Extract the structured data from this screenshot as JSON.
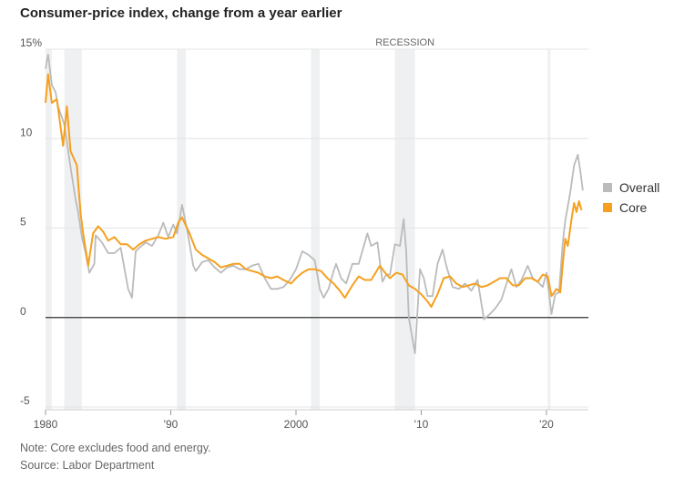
{
  "chart_data": {
    "type": "line",
    "title": "Consumer-price index, change from a year earlier",
    "ylim": [
      -5,
      15
    ],
    "xlim": [
      1980,
      2023
    ],
    "yticks": [
      15,
      10,
      5,
      0,
      -5
    ],
    "ytick_labels": [
      "15%",
      "10",
      "5",
      "0",
      "-5"
    ],
    "xticks": [
      1980,
      1990,
      2000,
      2010,
      2020
    ],
    "xtick_labels": [
      "1980",
      "'90",
      "2000",
      "'10",
      "'20"
    ],
    "grid": true,
    "legend_placement": "right",
    "recession_label": "RECESSION",
    "recessions": [
      [
        1980.0,
        1980.5
      ],
      [
        1981.5,
        1982.9
      ],
      [
        1990.5,
        1991.2
      ],
      [
        2001.2,
        2001.9
      ],
      [
        2007.9,
        2009.5
      ],
      [
        2020.1,
        2020.3
      ]
    ],
    "colors": {
      "Overall": "#bbbbbb",
      "Core": "#f5a01f",
      "recession": "#eef0f2",
      "zero_line": "#333333",
      "grid": "#e4e4e4"
    },
    "series": [
      {
        "name": "Overall",
        "x": [
          1980.0,
          1980.2,
          1980.5,
          1980.8,
          1981.0,
          1981.5,
          1982.0,
          1982.4,
          1982.6,
          1982.9,
          1983.2,
          1983.5,
          1983.9,
          1984.0,
          1984.5,
          1985.0,
          1985.5,
          1986.0,
          1986.6,
          1986.9,
          1987.2,
          1987.5,
          1988.0,
          1988.5,
          1989.0,
          1989.4,
          1989.8,
          1990.2,
          1990.5,
          1990.9,
          1991.3,
          1991.8,
          1992.0,
          1992.5,
          1993.0,
          1993.5,
          1994.0,
          1994.5,
          1995.0,
          1995.5,
          1996.0,
          1996.5,
          1997.0,
          1997.5,
          1998.0,
          1998.5,
          1999.0,
          1999.5,
          2000.0,
          2000.5,
          2001.0,
          2001.5,
          2001.9,
          2002.2,
          2002.6,
          2003.0,
          2003.2,
          2003.6,
          2004.0,
          2004.5,
          2005.0,
          2005.7,
          2006.0,
          2006.5,
          2006.9,
          2007.2,
          2007.5,
          2007.9,
          2008.3,
          2008.6,
          2008.8,
          2009.0,
          2009.5,
          2009.9,
          2010.2,
          2010.5,
          2010.9,
          2011.3,
          2011.7,
          2012.0,
          2012.5,
          2013.0,
          2013.5,
          2014.0,
          2014.5,
          2015.0,
          2015.5,
          2015.9,
          2016.4,
          2016.9,
          2017.2,
          2017.6,
          2018.0,
          2018.5,
          2018.9,
          2019.3,
          2019.7,
          2020.0,
          2020.4,
          2020.7,
          2021.0,
          2021.3,
          2021.5,
          2021.9,
          2022.2,
          2022.5,
          2022.7,
          2022.9
        ],
        "values": [
          13.9,
          14.7,
          13.0,
          12.6,
          11.8,
          10.8,
          8.4,
          6.6,
          5.9,
          4.5,
          3.6,
          2.5,
          3.0,
          4.6,
          4.2,
          3.6,
          3.6,
          3.9,
          1.6,
          1.1,
          3.7,
          3.9,
          4.2,
          4.0,
          4.6,
          5.3,
          4.5,
          5.2,
          4.7,
          6.3,
          4.9,
          2.9,
          2.6,
          3.1,
          3.2,
          2.8,
          2.5,
          2.8,
          2.9,
          2.7,
          2.7,
          2.9,
          3.0,
          2.2,
          1.6,
          1.6,
          1.7,
          2.1,
          2.7,
          3.7,
          3.5,
          3.2,
          1.6,
          1.1,
          1.6,
          2.6,
          3.0,
          2.2,
          1.9,
          3.0,
          3.0,
          4.7,
          4.0,
          4.2,
          2.0,
          2.4,
          2.4,
          4.1,
          4.0,
          5.5,
          3.7,
          0.0,
          -2.0,
          2.7,
          2.2,
          1.2,
          1.2,
          3.0,
          3.8,
          2.9,
          1.7,
          1.6,
          1.9,
          1.5,
          2.1,
          -0.1,
          0.2,
          0.5,
          1.0,
          2.1,
          2.7,
          1.7,
          2.1,
          2.9,
          2.2,
          2.0,
          1.7,
          2.5,
          0.2,
          1.3,
          1.4,
          4.2,
          5.4,
          7.0,
          8.5,
          9.1,
          8.2,
          7.1
        ]
      },
      {
        "name": "Core",
        "x": [
          1980.0,
          1980.2,
          1980.5,
          1980.9,
          1981.4,
          1981.7,
          1982.0,
          1982.5,
          1982.8,
          1983.0,
          1983.4,
          1983.8,
          1984.2,
          1984.6,
          1985.0,
          1985.5,
          1986.0,
          1986.5,
          1987.0,
          1987.5,
          1988.0,
          1988.5,
          1989.0,
          1989.6,
          1990.2,
          1990.6,
          1990.9,
          1991.5,
          1992.0,
          1992.5,
          1993.0,
          1993.5,
          1994.0,
          1994.5,
          1995.0,
          1995.5,
          1996.0,
          1996.5,
          1997.0,
          1997.5,
          1998.0,
          1998.5,
          1999.0,
          1999.6,
          2000.0,
          2000.5,
          2001.0,
          2001.5,
          2002.0,
          2002.5,
          2003.0,
          2003.5,
          2003.9,
          2004.5,
          2005.0,
          2005.5,
          2006.0,
          2006.7,
          2007.0,
          2007.5,
          2008.0,
          2008.5,
          2009.0,
          2009.5,
          2010.0,
          2010.5,
          2010.8,
          2011.3,
          2011.8,
          2012.3,
          2012.8,
          2013.3,
          2013.8,
          2014.3,
          2014.8,
          2015.3,
          2015.8,
          2016.3,
          2016.8,
          2017.3,
          2017.8,
          2018.3,
          2018.8,
          2019.3,
          2019.7,
          2020.1,
          2020.4,
          2020.8,
          2021.1,
          2021.3,
          2021.5,
          2021.7,
          2022.0,
          2022.2,
          2022.4,
          2022.6,
          2022.8
        ],
        "values": [
          12.0,
          13.6,
          12.0,
          12.2,
          9.6,
          11.8,
          9.3,
          8.5,
          5.8,
          4.7,
          2.9,
          4.7,
          5.1,
          4.8,
          4.3,
          4.5,
          4.1,
          4.1,
          3.8,
          4.1,
          4.3,
          4.4,
          4.5,
          4.4,
          4.5,
          5.3,
          5.6,
          4.7,
          3.8,
          3.5,
          3.3,
          3.1,
          2.8,
          2.9,
          3.0,
          3.0,
          2.7,
          2.6,
          2.5,
          2.3,
          2.2,
          2.3,
          2.1,
          1.9,
          2.2,
          2.5,
          2.7,
          2.7,
          2.6,
          2.2,
          1.9,
          1.5,
          1.1,
          1.8,
          2.3,
          2.1,
          2.1,
          2.9,
          2.6,
          2.2,
          2.5,
          2.4,
          1.8,
          1.6,
          1.3,
          0.9,
          0.6,
          1.3,
          2.2,
          2.3,
          1.9,
          1.7,
          1.8,
          1.9,
          1.7,
          1.8,
          2.0,
          2.2,
          2.2,
          1.8,
          1.8,
          2.2,
          2.2,
          2.0,
          2.4,
          2.3,
          1.2,
          1.6,
          1.4,
          3.0,
          4.4,
          4.0,
          5.5,
          6.4,
          5.9,
          6.5,
          6.0
        ]
      }
    ]
  },
  "notes": {
    "note": "Note: Core excludes food and energy.",
    "source": "Source: Labor Department"
  }
}
